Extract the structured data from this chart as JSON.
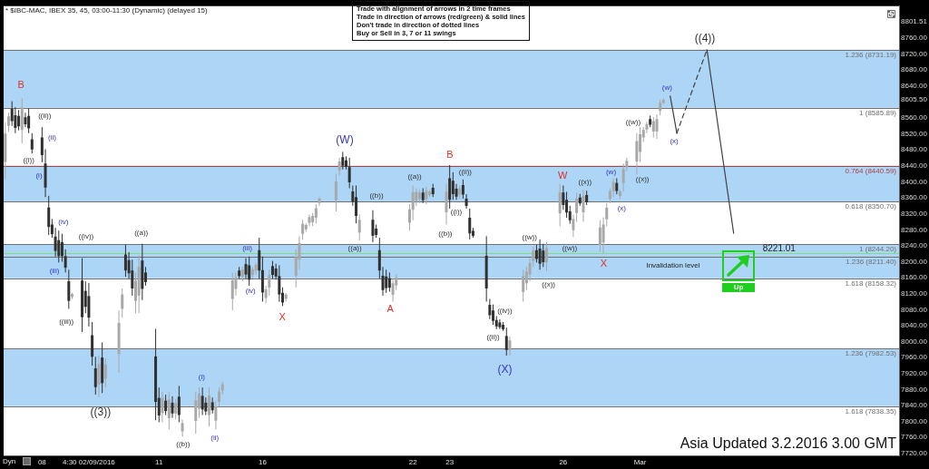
{
  "chart_data": {
    "type": "candlestick",
    "title": "* $IBC-MAC, IBEX 35, 45, 03:00-11:30 (Dynamic) (delayed 15)",
    "categories": [
      null,
      null,
      null,
      null,
      null,
      null,
      null,
      null,
      null,
      null,
      null,
      "08",
      null,
      null,
      null,
      null,
      null,
      null,
      null,
      null,
      null,
      null,
      null,
      null,
      null,
      "4:30 02/09/2016",
      null,
      null,
      null,
      null,
      null,
      null,
      null,
      null,
      null,
      null,
      null,
      null,
      null,
      null,
      null,
      null,
      null,
      null,
      null,
      null,
      "11",
      null,
      null,
      null,
      null,
      null,
      null,
      null,
      null,
      null,
      null,
      null,
      null,
      null,
      null,
      null,
      null,
      null,
      null,
      null,
      null,
      null,
      null,
      null,
      null,
      null,
      null,
      null,
      null,
      null,
      null,
      "16",
      null,
      null,
      null,
      null,
      null,
      null,
      null,
      null,
      null,
      null,
      null,
      null,
      null,
      null,
      null,
      null,
      null,
      null,
      null,
      null,
      null,
      null,
      null,
      null,
      null,
      null,
      null,
      null,
      null,
      null,
      null,
      null,
      null,
      null,
      null,
      null,
      null,
      null,
      null,
      null,
      null,
      null,
      null,
      null,
      "22",
      null,
      null,
      null,
      null,
      null,
      null,
      null,
      null,
      null,
      null,
      "23",
      null,
      null,
      null,
      null,
      null,
      null,
      null,
      null,
      null,
      null,
      null,
      null,
      null,
      null,
      null,
      null,
      null,
      null,
      null,
      null,
      null,
      null,
      null,
      null,
      null,
      null,
      null,
      null,
      null,
      null,
      null,
      null,
      null,
      "26",
      null,
      null,
      null,
      null,
      null,
      null,
      null,
      null,
      null,
      null,
      null,
      null,
      null,
      null,
      null,
      null,
      null,
      null,
      null,
      null,
      null,
      null,
      "Mar",
      null,
      null,
      null,
      null,
      null,
      null,
      null,
      null,
      null,
      null,
      null,
      null,
      null,
      null,
      null,
      null,
      null,
      null,
      null,
      null,
      null,
      null,
      null,
      null,
      null,
      null,
      null,
      null,
      null,
      null,
      null,
      null,
      null,
      null,
      null,
      null,
      null,
      null,
      null,
      null,
      null,
      null,
      null,
      null,
      null,
      null,
      null,
      null,
      null,
      null,
      null,
      null,
      null,
      null,
      null,
      null,
      null,
      null,
      null,
      null,
      null,
      null,
      null,
      null,
      null,
      null,
      null,
      null,
      null,
      null,
      null,
      null,
      null,
      null,
      null,
      null,
      null
    ],
    "ohlc": [
      [
        8450,
        8549,
        8407,
        8521
      ],
      [
        8540,
        8573,
        8526,
        8564
      ],
      [
        8583,
        8602,
        8540,
        8552
      ],
      [
        8567,
        8587,
        8522,
        8535
      ],
      [
        8565,
        8580,
        8529,
        8539
      ],
      [
        8530,
        8609,
        8496,
        8586
      ],
      [
        8562,
        8573,
        8537,
        8544
      ],
      [
        8565,
        8584,
        8522,
        8534
      ],
      [
        8507,
        8522,
        8471,
        8481
      ],
      null,
      null,
      [
        8511,
        8537,
        8449,
        8467
      ],
      [
        8446,
        8482,
        8362,
        8386
      ],
      [
        8336,
        8365,
        8267,
        8287
      ],
      [
        8293,
        8307,
        8260,
        8269
      ],
      [
        8263,
        8285,
        8213,
        8227
      ],
      [
        8254,
        8278,
        8198,
        8214
      ],
      [
        8249,
        8270,
        8200,
        8214
      ],
      [
        8214,
        8231,
        8173,
        8185
      ],
      [
        8151,
        8180,
        8082,
        8102
      ],
      [
        8112,
        8122,
        8107,
        8119
      ],
      null,
      null,
      [
        8153,
        8209,
        8024,
        8061
      ],
      [
        8127,
        8151,
        8071,
        8087
      ],
      [
        8114,
        8147,
        8038,
        8060
      ],
      [
        8016,
        8049,
        7940,
        7962
      ],
      [
        7933,
        7962,
        7867,
        7886
      ],
      [
        7892,
        7965,
        7860,
        7944
      ],
      [
        7960,
        7998,
        7871,
        7896
      ],
      [
        7907,
        7958,
        7885,
        7943
      ],
      null,
      null,
      null,
      [
        7969,
        8078,
        7922,
        8047
      ],
      [
        8082,
        8133,
        8060,
        8118
      ],
      [
        8218,
        8242,
        8162,
        8178
      ],
      [
        8204,
        8224,
        8158,
        8171
      ],
      [
        8178,
        8205,
        8115,
        8133
      ],
      [
        8102,
        8173,
        8071,
        8153
      ],
      [
        8115,
        8216,
        8071,
        8187
      ],
      [
        8203,
        8245,
        8104,
        8132
      ],
      [
        8173,
        8187,
        8140,
        8149
      ],
      null,
      null,
      [
        7963,
        8032,
        7803,
        7849
      ],
      [
        7859,
        7885,
        7798,
        7815
      ],
      [
        7821,
        7874,
        7798,
        7859
      ],
      [
        7852,
        7867,
        7816,
        7826
      ],
      [
        7808,
        7874,
        7780,
        7855
      ],
      [
        7847,
        7863,
        7809,
        7820
      ],
      [
        7820,
        7856,
        7805,
        7846
      ],
      [
        7862,
        7889,
        7798,
        7816
      ],
      [
        7775,
        7805,
        7762,
        7796
      ],
      null,
      null,
      null,
      [
        7801,
        7874,
        7769,
        7853
      ],
      [
        7832,
        7885,
        7809,
        7870
      ],
      [
        7864,
        7885,
        7816,
        7830
      ],
      [
        7847,
        7860,
        7816,
        7825
      ],
      [
        7816,
        7885,
        7787,
        7865
      ],
      [
        7848,
        7860,
        7820,
        7828
      ],
      [
        7802,
        7852,
        7780,
        7838
      ],
      [
        7849,
        7885,
        7834,
        7875
      ],
      [
        7877,
        7900,
        7867,
        7893
      ],
      null,
      null,
      [
        8107,
        8173,
        8078,
        8154
      ],
      [
        8132,
        8173,
        8115,
        8161
      ],
      [
        8178,
        8187,
        8158,
        8164
      ],
      [
        8162,
        8187,
        8151,
        8180
      ],
      [
        8194,
        8209,
        8158,
        8168
      ],
      [
        8191,
        8213,
        8140,
        8155
      ],
      [
        8167,
        8187,
        8158,
        8181
      ],
      [
        8178,
        8198,
        8169,
        8192
      ],
      [
        8229,
        8260,
        8158,
        8178
      ],
      [
        8179,
        8213,
        8100,
        8123
      ],
      [
        8109,
        8140,
        8096,
        8131
      ],
      [
        8135,
        8180,
        8115,
        8167
      ],
      [
        8189,
        8202,
        8158,
        8167
      ],
      [
        8183,
        8195,
        8155,
        8163
      ],
      [
        8164,
        8191,
        8100,
        8118
      ],
      [
        8122,
        8136,
        8089,
        8098
      ],
      [
        8107,
        8122,
        8100,
        8118
      ],
      null,
      null,
      [
        8165,
        8231,
        8136,
        8212
      ],
      [
        8205,
        8264,
        8180,
        8247
      ],
      [
        8270,
        8305,
        8255,
        8295
      ],
      [
        8281,
        8296,
        8275,
        8292
      ],
      [
        8298,
        8318,
        8289,
        8312
      ],
      [
        8299,
        8322,
        8289,
        8315
      ],
      [
        8310,
        8344,
        8296,
        8334
      ],
      [
        8347,
        8362,
        8340,
        8358
      ],
      null,
      null,
      null,
      null,
      [
        8354,
        8420,
        8326,
        8401
      ],
      [
        8429,
        8460,
        8416,
        8451
      ],
      [
        8462,
        8475,
        8431,
        8440
      ],
      [
        8454,
        8464,
        8431,
        8438
      ],
      [
        8437,
        8460,
        8384,
        8399
      ],
      [
        8376,
        8391,
        8340,
        8350
      ],
      [
        8362,
        8391,
        8296,
        8315
      ],
      [
        8273,
        8318,
        8253,
        8305
      ],
      null,
      null,
      null,
      [
        8305,
        8329,
        8249,
        8265
      ],
      [
        8283,
        8293,
        8260,
        8267
      ],
      [
        8229,
        8260,
        8158,
        8178
      ],
      [
        8165,
        8187,
        8115,
        8129
      ],
      [
        8163,
        8180,
        8122,
        8134
      ],
      [
        8159,
        8173,
        8125,
        8135
      ],
      [
        8117,
        8158,
        8100,
        8146
      ],
      [
        8141,
        8169,
        8129,
        8161
      ],
      null,
      null,
      null,
      [
        8298,
        8344,
        8278,
        8331
      ],
      [
        8330,
        8391,
        8304,
        8374
      ],
      [
        8353,
        8384,
        8340,
        8375
      ],
      [
        8357,
        8380,
        8347,
        8373
      ],
      [
        8373,
        8384,
        8347,
        8354
      ],
      [
        8357,
        8387,
        8344,
        8378
      ],
      [
        8367,
        8380,
        8362,
        8376
      ],
      [
        8385,
        8395,
        8362,
        8369
      ],
      null,
      null,
      null,
      [
        8324,
        8395,
        8293,
        8375
      ],
      [
        8409,
        8442,
        8333,
        8355
      ],
      [
        8403,
        8424,
        8355,
        8369
      ],
      [
        8383,
        8395,
        8355,
        8363
      ],
      [
        8368,
        8391,
        8358,
        8384
      ],
      [
        8392,
        8406,
        8358,
        8368
      ],
      [
        8358,
        8369,
        8333,
        8340
      ],
      [
        8310,
        8333,
        8256,
        8271
      ],
      [
        8277,
        8285,
        8260,
        8265
      ],
      null,
      null,
      null,
      [
        8215,
        8264,
        8100,
        8133
      ],
      [
        8092,
        8107,
        8056,
        8066
      ],
      [
        8078,
        8093,
        8042,
        8052
      ],
      [
        8054,
        8064,
        8031,
        8038
      ],
      [
        8048,
        8056,
        8031,
        8036
      ],
      [
        8042,
        8049,
        8027,
        8031
      ],
      [
        8014,
        8035,
        7965,
        7979
      ],
      [
        7979,
        8013,
        7965,
        8003
      ],
      null,
      null,
      null,
      [
        8124,
        8180,
        8100,
        8164
      ],
      [
        8146,
        8187,
        8129,
        8175
      ],
      [
        8168,
        8209,
        8151,
        8197
      ],
      [
        8202,
        8238,
        8187,
        8228
      ],
      [
        8229,
        8242,
        8198,
        8207
      ],
      [
        8233,
        8256,
        8180,
        8195
      ],
      [
        8228,
        8245,
        8187,
        8199
      ],
      [
        8198,
        8249,
        8176,
        8234
      ],
      null,
      null,
      null,
      [
        8321,
        8395,
        8289,
        8374
      ],
      [
        8373,
        8391,
        8330,
        8342
      ],
      [
        8355,
        8375,
        8310,
        8323
      ],
      [
        8326,
        8340,
        8295,
        8304
      ],
      [
        8279,
        8318,
        8262,
        8307
      ],
      [
        8322,
        8373,
        8300,
        8358
      ],
      [
        8361,
        8370,
        8340,
        8346
      ],
      [
        8324,
        8380,
        8300,
        8364
      ],
      [
        8367,
        8378,
        8342,
        8349
      ],
      null,
      null,
      null,
      [
        8242,
        8304,
        8225,
        8286
      ],
      [
        8248,
        8311,
        8221.01,
        8293
      ],
      [
        8306,
        8347,
        8289,
        8335
      ],
      [
        8358,
        8384,
        8347,
        8377
      ],
      [
        8376,
        8409,
        8362,
        8400
      ],
      [
        8397,
        8409,
        8369,
        8377
      ],
      [
        8365,
        8380,
        8358,
        8376
      ],
      [
        8397,
        8446,
        8376,
        8432
      ],
      [
        8437,
        8460,
        8427,
        8453
      ],
      null,
      null,
      [
        8451,
        8522,
        8420,
        8502
      ],
      [
        8475,
        8537,
        8449,
        8519
      ],
      [
        8511,
        8537,
        8500,
        8530
      ],
      [
        8531,
        8551,
        8522,
        8545
      ],
      [
        8557,
        8566,
        8537,
        8543
      ],
      [
        8526,
        8562,
        8511,
        8552
      ],
      [
        8526,
        8569,
        8507,
        8557
      ],
      [
        8578,
        8606,
        8566,
        8598
      ],
      [
        8598,
        8609,
        8595,
        8605.5
      ],
      null,
      null,
      null,
      null,
      null,
      null,
      null,
      null,
      null,
      null,
      null,
      null,
      null,
      null,
      null,
      null,
      null,
      null,
      null,
      null,
      null,
      null,
      null,
      null,
      null,
      null,
      null,
      null,
      null,
      null,
      null,
      null,
      null,
      null,
      null,
      null,
      null,
      null,
      null,
      null,
      null,
      null,
      null,
      null,
      null,
      null,
      null,
      null,
      null,
      null,
      null,
      null,
      null,
      null,
      null,
      null,
      null,
      null,
      null,
      null,
      null,
      null,
      null,
      null,
      null,
      null,
      null,
      null,
      null,
      null
    ],
    "colors": [
      "#a8a8a8",
      "#a8a8a8",
      "#303030",
      "#303030",
      "#303030",
      "#a8a8a8",
      "#303030",
      "#303030",
      "#303030",
      null,
      null,
      "#303030",
      "#303030",
      "#303030",
      "#303030",
      "#303030",
      "#303030",
      "#303030",
      "#303030",
      "#303030",
      "#a8a8a8",
      null,
      null,
      "#303030",
      "#303030",
      "#303030",
      "#303030",
      "#303030",
      "#a8a8a8",
      "#303030",
      "#a8a8a8",
      null,
      null,
      null,
      "#a8a8a8",
      "#a8a8a8",
      "#303030",
      "#303030",
      "#303030",
      "#a8a8a8",
      "#a8a8a8",
      "#303030",
      "#303030",
      null,
      null,
      "#303030",
      "#303030",
      "#a8a8a8",
      "#303030",
      "#a8a8a8",
      "#303030",
      "#a8a8a8",
      "#303030",
      "#a8a8a8",
      null,
      null,
      null,
      "#a8a8a8",
      "#a8a8a8",
      "#303030",
      "#303030",
      "#a8a8a8",
      "#303030",
      "#a8a8a8",
      "#a8a8a8",
      "#a8a8a8",
      null,
      null,
      "#a8a8a8",
      "#a8a8a8",
      "#303030",
      "#a8a8a8",
      "#303030",
      "#303030",
      "#a8a8a8",
      "#a8a8a8",
      "#303030",
      "#303030",
      "#a8a8a8",
      "#a8a8a8",
      "#303030",
      "#303030",
      "#303030",
      "#303030",
      "#a8a8a8",
      null,
      null,
      "#a8a8a8",
      "#a8a8a8",
      "#a8a8a8",
      "#a8a8a8",
      "#a8a8a8",
      "#a8a8a8",
      "#a8a8a8",
      "#a8a8a8",
      null,
      null,
      null,
      null,
      "#a8a8a8",
      "#a8a8a8",
      "#303030",
      "#303030",
      "#303030",
      "#303030",
      "#303030",
      "#a8a8a8",
      null,
      null,
      null,
      "#303030",
      "#303030",
      "#303030",
      "#303030",
      "#303030",
      "#303030",
      "#a8a8a8",
      "#a8a8a8",
      null,
      null,
      null,
      "#a8a8a8",
      "#a8a8a8",
      "#a8a8a8",
      "#a8a8a8",
      "#303030",
      "#a8a8a8",
      "#a8a8a8",
      "#303030",
      null,
      null,
      null,
      "#a8a8a8",
      "#303030",
      "#303030",
      "#303030",
      "#a8a8a8",
      "#303030",
      "#303030",
      "#303030",
      "#303030",
      null,
      null,
      null,
      "#303030",
      "#303030",
      "#303030",
      "#303030",
      "#303030",
      "#303030",
      "#303030",
      "#a8a8a8",
      null,
      null,
      null,
      "#a8a8a8",
      "#a8a8a8",
      "#a8a8a8",
      "#a8a8a8",
      "#303030",
      "#303030",
      "#303030",
      "#a8a8a8",
      null,
      null,
      null,
      "#a8a8a8",
      "#303030",
      "#303030",
      "#303030",
      "#a8a8a8",
      "#a8a8a8",
      "#303030",
      "#a8a8a8",
      "#303030",
      null,
      null,
      null,
      "#a8a8a8",
      "#a8a8a8",
      "#a8a8a8",
      "#a8a8a8",
      "#a8a8a8",
      "#303030",
      "#a8a8a8",
      "#a8a8a8",
      "#a8a8a8",
      null,
      null,
      "#a8a8a8",
      "#a8a8a8",
      "#a8a8a8",
      "#a8a8a8",
      "#303030",
      "#a8a8a8",
      "#a8a8a8",
      "#a8a8a8",
      "#a8a8a8",
      null,
      null,
      null,
      null,
      null,
      null,
      null,
      null,
      null,
      null,
      null,
      null,
      null,
      null,
      null,
      null,
      null,
      null,
      null,
      null,
      null,
      null,
      null,
      null,
      null,
      null,
      null,
      null,
      null,
      null,
      null,
      null,
      null,
      null,
      null,
      null,
      null,
      null,
      null,
      null,
      null,
      null,
      null,
      null,
      null,
      null,
      null,
      null,
      null,
      null,
      null,
      null,
      null,
      null,
      null,
      null,
      null,
      null,
      null,
      null,
      null,
      null,
      null,
      null,
      null,
      null,
      null,
      null,
      null,
      null
    ],
    "series": [
      {
        "type": "line",
        "color": "#404040",
        "line_style": "solid",
        "values": [
          null,
          null,
          null,
          null,
          null,
          null,
          null,
          null,
          null,
          null,
          null,
          null,
          null,
          null,
          null,
          null,
          null,
          null,
          null,
          null,
          null,
          null,
          null,
          null,
          null,
          null,
          null,
          null,
          null,
          null,
          null,
          null,
          null,
          null,
          null,
          null,
          null,
          null,
          null,
          null,
          null,
          null,
          null,
          null,
          null,
          null,
          null,
          null,
          null,
          null,
          null,
          null,
          null,
          null,
          null,
          null,
          null,
          null,
          null,
          null,
          null,
          null,
          null,
          null,
          null,
          null,
          null,
          null,
          null,
          null,
          null,
          null,
          null,
          null,
          null,
          null,
          null,
          null,
          null,
          null,
          null,
          null,
          null,
          null,
          null,
          null,
          null,
          null,
          null,
          null,
          null,
          null,
          null,
          null,
          null,
          null,
          null,
          null,
          null,
          null,
          null,
          null,
          null,
          null,
          null,
          null,
          null,
          null,
          null,
          null,
          null,
          null,
          null,
          null,
          null,
          null,
          null,
          null,
          null,
          null,
          null,
          null,
          null,
          null,
          null,
          null,
          null,
          null,
          null,
          null,
          null,
          null,
          null,
          null,
          null,
          null,
          null,
          null,
          null,
          null,
          null,
          null,
          null,
          null,
          null,
          null,
          null,
          null,
          null,
          null,
          null,
          null,
          null,
          null,
          null,
          null,
          null,
          null,
          null,
          null,
          null,
          null,
          null,
          null,
          null,
          null,
          null,
          null,
          null,
          null,
          null,
          null,
          null,
          null,
          null,
          null,
          null,
          null,
          null,
          null,
          null,
          null,
          null,
          null,
          null,
          null,
          null,
          null,
          null,
          null,
          null,
          null,
          null,
          null,
          null,
          null,
          null,
          null,
          null,
          8615,
          null,
          8522,
          null,
          null,
          null,
          null,
          null,
          null,
          null,
          null,
          null,
          null,
          null,
          null,
          null,
          null,
          null,
          null,
          null,
          null,
          null,
          null,
          null,
          null,
          null,
          null,
          null,
          null,
          null,
          null,
          null,
          null,
          null,
          null,
          null,
          null,
          null,
          null,
          null,
          null,
          null,
          null,
          null,
          null,
          null,
          null,
          null,
          null,
          null,
          null,
          null,
          null,
          null,
          null,
          null,
          null,
          null,
          null,
          null,
          null,
          null,
          null,
          null,
          null,
          null,
          null,
          null,
          null
        ]
      },
      {
        "type": "line",
        "color": "#404040",
        "line_style": "dashed",
        "values": [
          null,
          null,
          null,
          null,
          null,
          null,
          null,
          null,
          null,
          null,
          null,
          null,
          null,
          null,
          null,
          null,
          null,
          null,
          null,
          null,
          null,
          null,
          null,
          null,
          null,
          null,
          null,
          null,
          null,
          null,
          null,
          null,
          null,
          null,
          null,
          null,
          null,
          null,
          null,
          null,
          null,
          null,
          null,
          null,
          null,
          null,
          null,
          null,
          null,
          null,
          null,
          null,
          null,
          null,
          null,
          null,
          null,
          null,
          null,
          null,
          null,
          null,
          null,
          null,
          null,
          null,
          null,
          null,
          null,
          null,
          null,
          null,
          null,
          null,
          null,
          null,
          null,
          null,
          null,
          null,
          null,
          null,
          null,
          null,
          null,
          null,
          null,
          null,
          null,
          null,
          null,
          null,
          null,
          null,
          null,
          null,
          null,
          null,
          null,
          null,
          null,
          null,
          null,
          null,
          null,
          null,
          null,
          null,
          null,
          null,
          null,
          null,
          null,
          null,
          null,
          null,
          null,
          null,
          null,
          null,
          null,
          null,
          null,
          null,
          null,
          null,
          null,
          null,
          null,
          null,
          null,
          null,
          null,
          null,
          null,
          null,
          null,
          null,
          null,
          null,
          null,
          null,
          null,
          null,
          null,
          null,
          null,
          null,
          null,
          null,
          null,
          null,
          null,
          null,
          null,
          null,
          null,
          null,
          null,
          null,
          null,
          null,
          null,
          null,
          null,
          null,
          null,
          null,
          null,
          null,
          null,
          null,
          null,
          null,
          null,
          null,
          null,
          null,
          null,
          null,
          null,
          null,
          null,
          null,
          null,
          null,
          null,
          null,
          null,
          null,
          null,
          null,
          null,
          null,
          null,
          null,
          null,
          null,
          null,
          null,
          null,
          8522,
          null,
          null,
          null,
          null,
          null,
          null,
          null,
          null,
          8731,
          null,
          null,
          null,
          null,
          null,
          null,
          null,
          null,
          null,
          null,
          null,
          null,
          null,
          null,
          null,
          null,
          null,
          null,
          null,
          null,
          null,
          null,
          null,
          null,
          null,
          null,
          null,
          null,
          null,
          null,
          null,
          null,
          null,
          null,
          null,
          null,
          null,
          null,
          null,
          null,
          null,
          null,
          null,
          null,
          null,
          null,
          null,
          null,
          null,
          null,
          null,
          null,
          null,
          null,
          null,
          null,
          null
        ]
      },
      {
        "type": "line",
        "color": "#404040",
        "line_style": "solid",
        "values": [
          null,
          null,
          null,
          null,
          null,
          null,
          null,
          null,
          null,
          null,
          null,
          null,
          null,
          null,
          null,
          null,
          null,
          null,
          null,
          null,
          null,
          null,
          null,
          null,
          null,
          null,
          null,
          null,
          null,
          null,
          null,
          null,
          null,
          null,
          null,
          null,
          null,
          null,
          null,
          null,
          null,
          null,
          null,
          null,
          null,
          null,
          null,
          null,
          null,
          null,
          null,
          null,
          null,
          null,
          null,
          null,
          null,
          null,
          null,
          null,
          null,
          null,
          null,
          null,
          null,
          null,
          null,
          null,
          null,
          null,
          null,
          null,
          null,
          null,
          null,
          null,
          null,
          null,
          null,
          null,
          null,
          null,
          null,
          null,
          null,
          null,
          null,
          null,
          null,
          null,
          null,
          null,
          null,
          null,
          null,
          null,
          null,
          null,
          null,
          null,
          null,
          null,
          null,
          null,
          null,
          null,
          null,
          null,
          null,
          null,
          null,
          null,
          null,
          null,
          null,
          null,
          null,
          null,
          null,
          null,
          null,
          null,
          null,
          null,
          null,
          null,
          null,
          null,
          null,
          null,
          null,
          null,
          null,
          null,
          null,
          null,
          null,
          null,
          null,
          null,
          null,
          null,
          null,
          null,
          null,
          null,
          null,
          null,
          null,
          null,
          null,
          null,
          null,
          null,
          null,
          null,
          null,
          null,
          null,
          null,
          null,
          null,
          null,
          null,
          null,
          null,
          null,
          null,
          null,
          null,
          null,
          null,
          null,
          null,
          null,
          null,
          null,
          null,
          null,
          null,
          null,
          null,
          null,
          null,
          null,
          null,
          null,
          null,
          null,
          null,
          null,
          null,
          null,
          null,
          null,
          null,
          null,
          null,
          null,
          null,
          null,
          null,
          null,
          null,
          null,
          null,
          null,
          null,
          null,
          null,
          8731,
          null,
          null,
          null,
          null,
          null,
          null,
          null,
          8271,
          null,
          null,
          null,
          null,
          null,
          null,
          null,
          null,
          null,
          null,
          null,
          null,
          null,
          null,
          null,
          null,
          null,
          null,
          null,
          null,
          null,
          null,
          null,
          null,
          null,
          null,
          null,
          null,
          null,
          null,
          null,
          null,
          null,
          null,
          null,
          null,
          null,
          null,
          null,
          null,
          null,
          null,
          null,
          null,
          null,
          null,
          null,
          null,
          null
        ]
      }
    ],
    "ylim": [
      7715,
      8840
    ],
    "yticks": [
      {
        "value": 7720,
        "label": "7720.00"
      },
      {
        "value": 7760,
        "label": "7760.00"
      },
      {
        "value": 7800,
        "label": "7800.00"
      },
      {
        "value": 7840,
        "label": "7840.00"
      },
      {
        "value": 7880,
        "label": "7880.00"
      },
      {
        "value": 7920,
        "label": "7920.00"
      },
      {
        "value": 7960,
        "label": "7960.00"
      },
      {
        "value": 8000,
        "label": "8000.00"
      },
      {
        "value": 8040,
        "label": "8040.00"
      },
      {
        "value": 8080,
        "label": "8080.00"
      },
      {
        "value": 8120,
        "label": "8120.00"
      },
      {
        "value": 8160,
        "label": "8160.00"
      },
      {
        "value": 8200,
        "label": "8200.00"
      },
      {
        "value": 8240,
        "label": "8240.00"
      },
      {
        "value": 8280,
        "label": "8280.00"
      },
      {
        "value": 8320,
        "label": "8320.00"
      },
      {
        "value": 8360,
        "label": "8360.00"
      },
      {
        "value": 8400,
        "label": "8400.00"
      },
      {
        "value": 8440,
        "label": "8440.00"
      },
      {
        "value": 8480,
        "label": "8480.00"
      },
      {
        "value": 8520,
        "label": "8520.00"
      },
      {
        "value": 8560,
        "label": "8560.00"
      },
      {
        "value": 8605.5,
        "label": "8605.50"
      },
      {
        "value": 8640,
        "label": "8640.00"
      },
      {
        "value": 8680,
        "label": "8680.00"
      },
      {
        "value": 8720,
        "label": "8720.00"
      },
      {
        "value": 8760,
        "label": "8760.00"
      },
      {
        "value": 8801.51,
        "label": "8801.51"
      }
    ],
    "bands": [
      {
        "axis": "y",
        "from": 8585.89,
        "to": 8731.19,
        "color": "#acd5f6"
      },
      {
        "axis": "y",
        "from": 8350.7,
        "to": 8440.59,
        "color": "#acd5f6"
      },
      {
        "axis": "y",
        "from": 8158.32,
        "to": 8244.2,
        "color": "#acd5f6"
      },
      {
        "axis": "y",
        "from": 7838.35,
        "to": 7982.53,
        "color": "#acd5f6"
      }
    ],
    "ref_lines": [
      {
        "axis": "y",
        "value": 8731.19,
        "label": "1.236 (8731.19)",
        "color": "#707070"
      },
      {
        "axis": "y",
        "value": 8585.89,
        "label": "1 (8585.89)",
        "color": "#707070"
      },
      {
        "axis": "y",
        "value": 8440.59,
        "label": "0.764 (8440.59)",
        "color": "#b04040"
      },
      {
        "axis": "y",
        "value": 8350.7,
        "label": "0.618 (8350.70)",
        "color": "#707070"
      },
      {
        "axis": "y",
        "value": 8244.2,
        "label": "1 (8244.20)",
        "color": "#707070"
      },
      {
        "axis": "y",
        "value": 8211.4,
        "label": "1.236 (8211.40)",
        "color": "#707070"
      },
      {
        "axis": "y",
        "value": 8158.32,
        "label": "1.618 (8158.32)",
        "color": "#707070"
      },
      {
        "axis": "y",
        "value": 7982.53,
        "label": "1.236 (7982.53)",
        "color": "#707070"
      },
      {
        "axis": "y",
        "value": 7838.35,
        "label": "1.618 (7838.35)",
        "color": "#707070"
      },
      {
        "axis": "y",
        "value": 8221.01,
        "color": "#7ee07e"
      }
    ],
    "annotations": [
      "Trade with alignment of arrows in 2 time frames",
      "Trade in direction of arrows (red/green) & solid lines",
      "Don't trade in direction of dotted lines",
      "Buy or Sell in 3, 7 or 11 swings",
      "Up",
      "Dyn",
      "Asia Updated 3.2.2016 3.00 GMT",
      "B",
      "((ii))",
      "(ii)",
      "((i))",
      "(i)",
      "(iv)",
      "(iii)",
      "((iii))",
      "((iv))",
      "((3))",
      "((a))",
      "((b))",
      "(i)",
      "(ii)",
      "(iii)",
      "(iv)",
      "X",
      "(W)",
      "((a))",
      "((b))",
      "A",
      "((a))",
      "B",
      "((ii))",
      "((i))",
      "((b))",
      "((iv))",
      "((ii))",
      "(X)",
      "((w))",
      "((x))",
      "W",
      "((x))",
      "((w))",
      "(w)",
      "(x)",
      "X",
      "((w))",
      "((x))",
      "(w)",
      "(x)",
      "((4))",
      "Invalidation level",
      "8221.01"
    ]
  }
}
